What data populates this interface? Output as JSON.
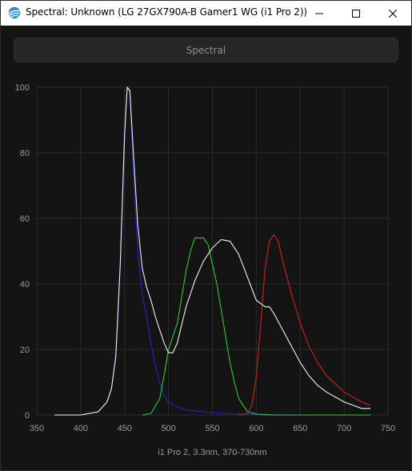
{
  "window": {
    "title": "Spectral: Unknown (LG 27GX790A-B Gamer1 WG (i1 Pro 2))",
    "icon": "displaycal-icon",
    "controls": [
      "minimize-icon",
      "maximize-icon",
      "close-icon"
    ]
  },
  "toolbar": {
    "spectral_label": "Spectral"
  },
  "chart_data": {
    "type": "line",
    "xlabel": "i1 Pro 2, 3.3nm, 370-730nm",
    "ylabel": "",
    "xlim": [
      350,
      750
    ],
    "ylim": [
      0,
      100
    ],
    "x_ticks": [
      350,
      400,
      450,
      500,
      550,
      600,
      650,
      700,
      750
    ],
    "y_ticks": [
      0,
      20,
      40,
      60,
      80,
      100
    ],
    "grid": true,
    "legend": "none",
    "series": [
      {
        "color": "#2323d8",
        "x": [
          370,
          400,
          420,
          430,
          435,
          440,
          445,
          450,
          453,
          456,
          460,
          465,
          470,
          475,
          480,
          485,
          490,
          495,
          500,
          505,
          510,
          520,
          540,
          560,
          580,
          600,
          650,
          700,
          730
        ],
        "y": [
          0,
          0,
          1,
          4,
          8,
          18,
          45,
          85,
          100,
          98,
          75,
          50,
          37,
          30,
          22,
          15,
          10,
          6,
          4,
          3,
          2.5,
          1.5,
          1,
          0.5,
          0.3,
          0.2,
          0,
          0,
          0
        ]
      },
      {
        "color": "#22d122",
        "x": [
          470,
          480,
          490,
          495,
          500,
          505,
          510,
          515,
          520,
          525,
          530,
          535,
          540,
          545,
          550,
          555,
          560,
          565,
          570,
          575,
          580,
          590,
          600,
          620,
          650,
          700,
          730
        ],
        "y": [
          0,
          0.5,
          5,
          12,
          20,
          24,
          28,
          36,
          44,
          50,
          54,
          54,
          54,
          52,
          46,
          40,
          32,
          24,
          16,
          10,
          5,
          1,
          0.3,
          0,
          0,
          0,
          0
        ]
      },
      {
        "color": "#d41e1e",
        "x": [
          580,
          590,
          595,
          600,
          605,
          610,
          615,
          620,
          625,
          630,
          640,
          650,
          660,
          670,
          680,
          700,
          720,
          730
        ],
        "y": [
          0,
          0.5,
          3,
          12,
          28,
          45,
          53,
          55,
          53,
          47,
          37,
          28,
          21,
          16,
          12,
          7,
          4,
          3
        ]
      },
      {
        "color": "#f2f2f2",
        "x": [
          370,
          400,
          420,
          430,
          435,
          440,
          445,
          450,
          453,
          456,
          460,
          465,
          470,
          475,
          480,
          485,
          490,
          495,
          500,
          505,
          510,
          520,
          530,
          540,
          550,
          560,
          570,
          580,
          590,
          600,
          610,
          615,
          620,
          630,
          640,
          650,
          660,
          670,
          680,
          700,
          720,
          730
        ],
        "y": [
          0,
          0,
          1,
          4,
          8,
          18,
          46,
          86,
          100,
          99,
          80,
          58,
          45,
          39,
          35,
          30,
          26,
          22,
          19,
          19,
          22,
          33,
          41,
          47,
          51,
          53.5,
          53,
          49,
          42,
          35,
          33,
          33,
          31,
          26,
          21,
          16,
          12,
          9,
          7,
          4,
          2,
          2
        ]
      }
    ]
  }
}
